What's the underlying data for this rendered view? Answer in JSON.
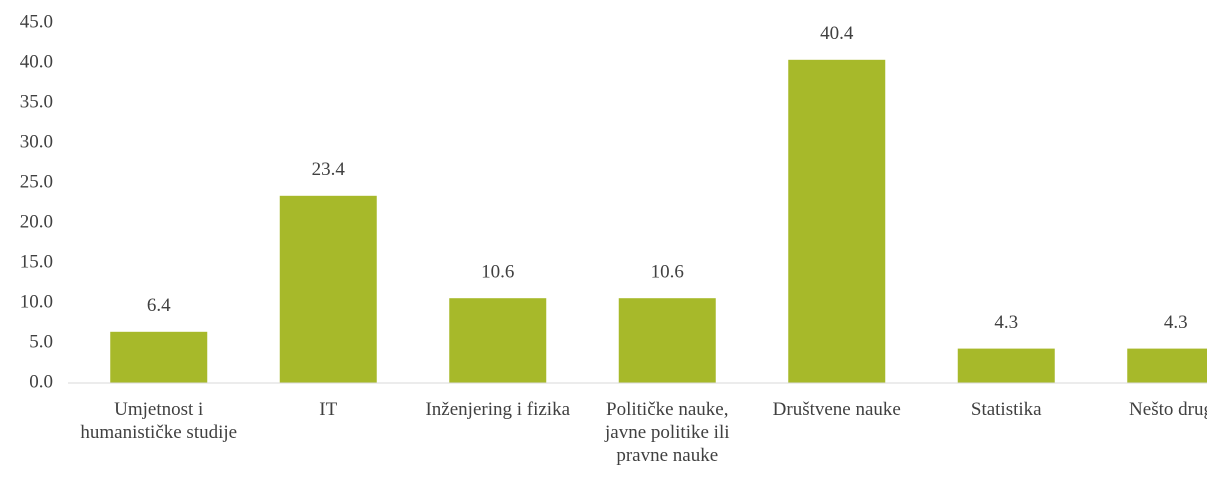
{
  "chart_data": {
    "type": "bar",
    "categories": [
      "Umjetnost i humanističke studije",
      "IT",
      "Inženjering i fizika",
      "Političke nauke, javne politike ili pravne nauke",
      "Društvene nauke",
      "Statistika",
      "Nešto drugo"
    ],
    "values": [
      6.4,
      23.4,
      10.6,
      10.6,
      40.4,
      4.3,
      4.3
    ],
    "color": "#a7b92a",
    "ylim": [
      0,
      45
    ],
    "yticks": [
      {
        "value": 0,
        "label": "0.0"
      },
      {
        "value": 5,
        "label": "5.0"
      },
      {
        "value": 10,
        "label": "10.0"
      },
      {
        "value": 15,
        "label": "15.0"
      },
      {
        "value": 20,
        "label": "20.0"
      },
      {
        "value": 25,
        "label": "25.0"
      },
      {
        "value": 30,
        "label": "30.0"
      },
      {
        "value": 35,
        "label": "35.0"
      },
      {
        "value": 40,
        "label": "40.0"
      },
      {
        "value": 45,
        "label": "45.0"
      }
    ],
    "grid": false
  }
}
